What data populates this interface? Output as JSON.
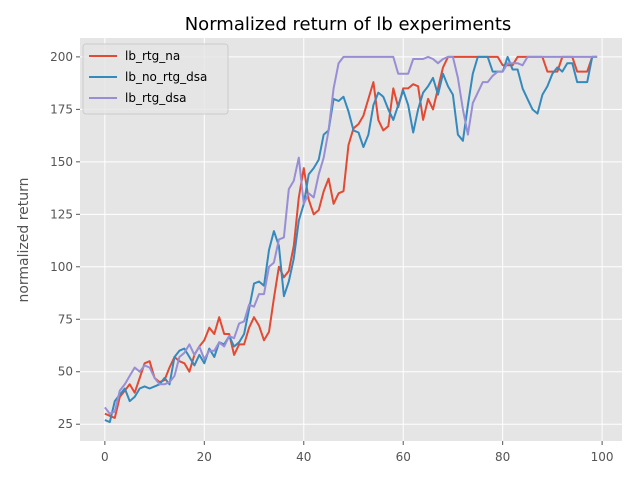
{
  "chart_data": {
    "type": "line",
    "title": "Normalized return of lb experiments",
    "xlabel": "",
    "ylabel": "normalized return",
    "xlim": [
      -5,
      104
    ],
    "ylim": [
      17,
      209
    ],
    "xticks": [
      0,
      20,
      40,
      60,
      80,
      100
    ],
    "yticks": [
      25,
      50,
      75,
      100,
      125,
      150,
      175,
      200
    ],
    "grid": true,
    "legend_position": "top-left",
    "background": "#e5e5e5",
    "series": [
      {
        "name": "lb_rtg_na",
        "color": "#e24a33",
        "x": [
          0,
          1,
          2,
          3,
          4,
          5,
          6,
          7,
          8,
          9,
          10,
          11,
          12,
          13,
          14,
          15,
          16,
          17,
          18,
          19,
          20,
          21,
          22,
          23,
          24,
          25,
          26,
          27,
          28,
          29,
          30,
          31,
          32,
          33,
          34,
          35,
          36,
          37,
          38,
          39,
          40,
          41,
          42,
          43,
          44,
          45,
          46,
          47,
          48,
          49,
          50,
          51,
          52,
          53,
          54,
          55,
          56,
          57,
          58,
          59,
          60,
          61,
          62,
          63,
          64,
          65,
          66,
          67,
          68,
          69,
          70,
          71,
          72,
          73,
          74,
          75,
          76,
          77,
          78,
          79,
          80,
          81,
          82,
          83,
          84,
          85,
          86,
          87,
          88,
          89,
          90,
          91,
          92,
          93,
          94,
          95,
          96,
          97,
          98,
          99
        ],
        "values": [
          30,
          29,
          28,
          38,
          41,
          44,
          40,
          47,
          54,
          55,
          47,
          45,
          46,
          52,
          57,
          55,
          54,
          50,
          58,
          62,
          65,
          71,
          68,
          76,
          68,
          68,
          58,
          63,
          63,
          71,
          76,
          72,
          65,
          69,
          85,
          100,
          95,
          98,
          110,
          133,
          147,
          132,
          125,
          127,
          136,
          142,
          130,
          135,
          136,
          158,
          166,
          168,
          172,
          180,
          188,
          170,
          165,
          167,
          185,
          176,
          185,
          185,
          187,
          186,
          170,
          180,
          175,
          185,
          195,
          200,
          200,
          200,
          200,
          200,
          200,
          200,
          200,
          200,
          200,
          200,
          196,
          196,
          196,
          200,
          200,
          200,
          200,
          200,
          200,
          193,
          193,
          193,
          200,
          200,
          200,
          193,
          193,
          193,
          200,
          200
        ]
      },
      {
        "name": "lb_no_rtg_dsa",
        "color": "#348abd",
        "x": [
          0,
          1,
          2,
          3,
          4,
          5,
          6,
          7,
          8,
          9,
          10,
          11,
          12,
          13,
          14,
          15,
          16,
          17,
          18,
          19,
          20,
          21,
          22,
          23,
          24,
          25,
          26,
          27,
          28,
          29,
          30,
          31,
          32,
          33,
          34,
          35,
          36,
          37,
          38,
          39,
          40,
          41,
          42,
          43,
          44,
          45,
          46,
          47,
          48,
          49,
          50,
          51,
          52,
          53,
          54,
          55,
          56,
          57,
          58,
          59,
          60,
          61,
          62,
          63,
          64,
          65,
          66,
          67,
          68,
          69,
          70,
          71,
          72,
          73,
          74,
          75,
          76,
          77,
          78,
          79,
          80,
          81,
          82,
          83,
          84,
          85,
          86,
          87,
          88,
          89,
          90,
          91,
          92,
          93,
          94,
          95,
          96,
          97,
          98,
          99
        ],
        "values": [
          27,
          26,
          36,
          39,
          42,
          36,
          38,
          42,
          43,
          42,
          43,
          44,
          47,
          44,
          57,
          60,
          61,
          57,
          53,
          58,
          54,
          61,
          57,
          64,
          63,
          67,
          62,
          64,
          68,
          80,
          92,
          93,
          91,
          108,
          117,
          110,
          86,
          93,
          104,
          122,
          130,
          144,
          147,
          151,
          163,
          165,
          180,
          179,
          181,
          174,
          165,
          164,
          157,
          163,
          177,
          183,
          181,
          175,
          170,
          177,
          184,
          177,
          164,
          175,
          183,
          186,
          190,
          182,
          192,
          186,
          182,
          163,
          160,
          177,
          192,
          200,
          200,
          200,
          193,
          193,
          193,
          200,
          194,
          194,
          185,
          180,
          175,
          173,
          182,
          186,
          192,
          195,
          193,
          197,
          197,
          188,
          188,
          188,
          200,
          200
        ]
      },
      {
        "name": "lb_rtg_dsa",
        "color": "#988ed5",
        "x": [
          0,
          1,
          2,
          3,
          4,
          5,
          6,
          7,
          8,
          9,
          10,
          11,
          12,
          13,
          14,
          15,
          16,
          17,
          18,
          19,
          20,
          21,
          22,
          23,
          24,
          25,
          26,
          27,
          28,
          29,
          30,
          31,
          32,
          33,
          34,
          35,
          36,
          37,
          38,
          39,
          40,
          41,
          42,
          43,
          44,
          45,
          46,
          47,
          48,
          49,
          50,
          51,
          52,
          53,
          54,
          55,
          56,
          57,
          58,
          59,
          60,
          61,
          62,
          63,
          64,
          65,
          66,
          67,
          68,
          69,
          70,
          71,
          72,
          73,
          74,
          75,
          76,
          77,
          78,
          79,
          80,
          81,
          82,
          83,
          84,
          85,
          86,
          87,
          88,
          89,
          90,
          91,
          92,
          93,
          94,
          95,
          96,
          97,
          98,
          99
        ],
        "values": [
          33,
          30,
          31,
          41,
          44,
          48,
          52,
          50,
          53,
          52,
          47,
          44,
          44,
          45,
          48,
          57,
          59,
          63,
          58,
          62,
          56,
          60,
          60,
          64,
          62,
          67,
          66,
          73,
          74,
          82,
          81,
          87,
          87,
          100,
          102,
          113,
          114,
          137,
          141,
          152,
          130,
          135,
          133,
          144,
          152,
          165,
          185,
          197,
          200,
          200,
          200,
          200,
          200,
          200,
          200,
          200,
          200,
          200,
          200,
          192,
          192,
          192,
          199,
          199,
          199,
          200,
          199,
          197,
          199,
          200,
          200,
          190,
          175,
          163,
          178,
          183,
          188,
          188,
          191,
          193,
          193,
          197,
          197,
          197,
          196,
          200,
          200,
          200,
          200,
          200,
          200,
          200,
          200,
          200,
          200,
          200,
          200,
          200,
          200,
          200
        ]
      }
    ]
  }
}
